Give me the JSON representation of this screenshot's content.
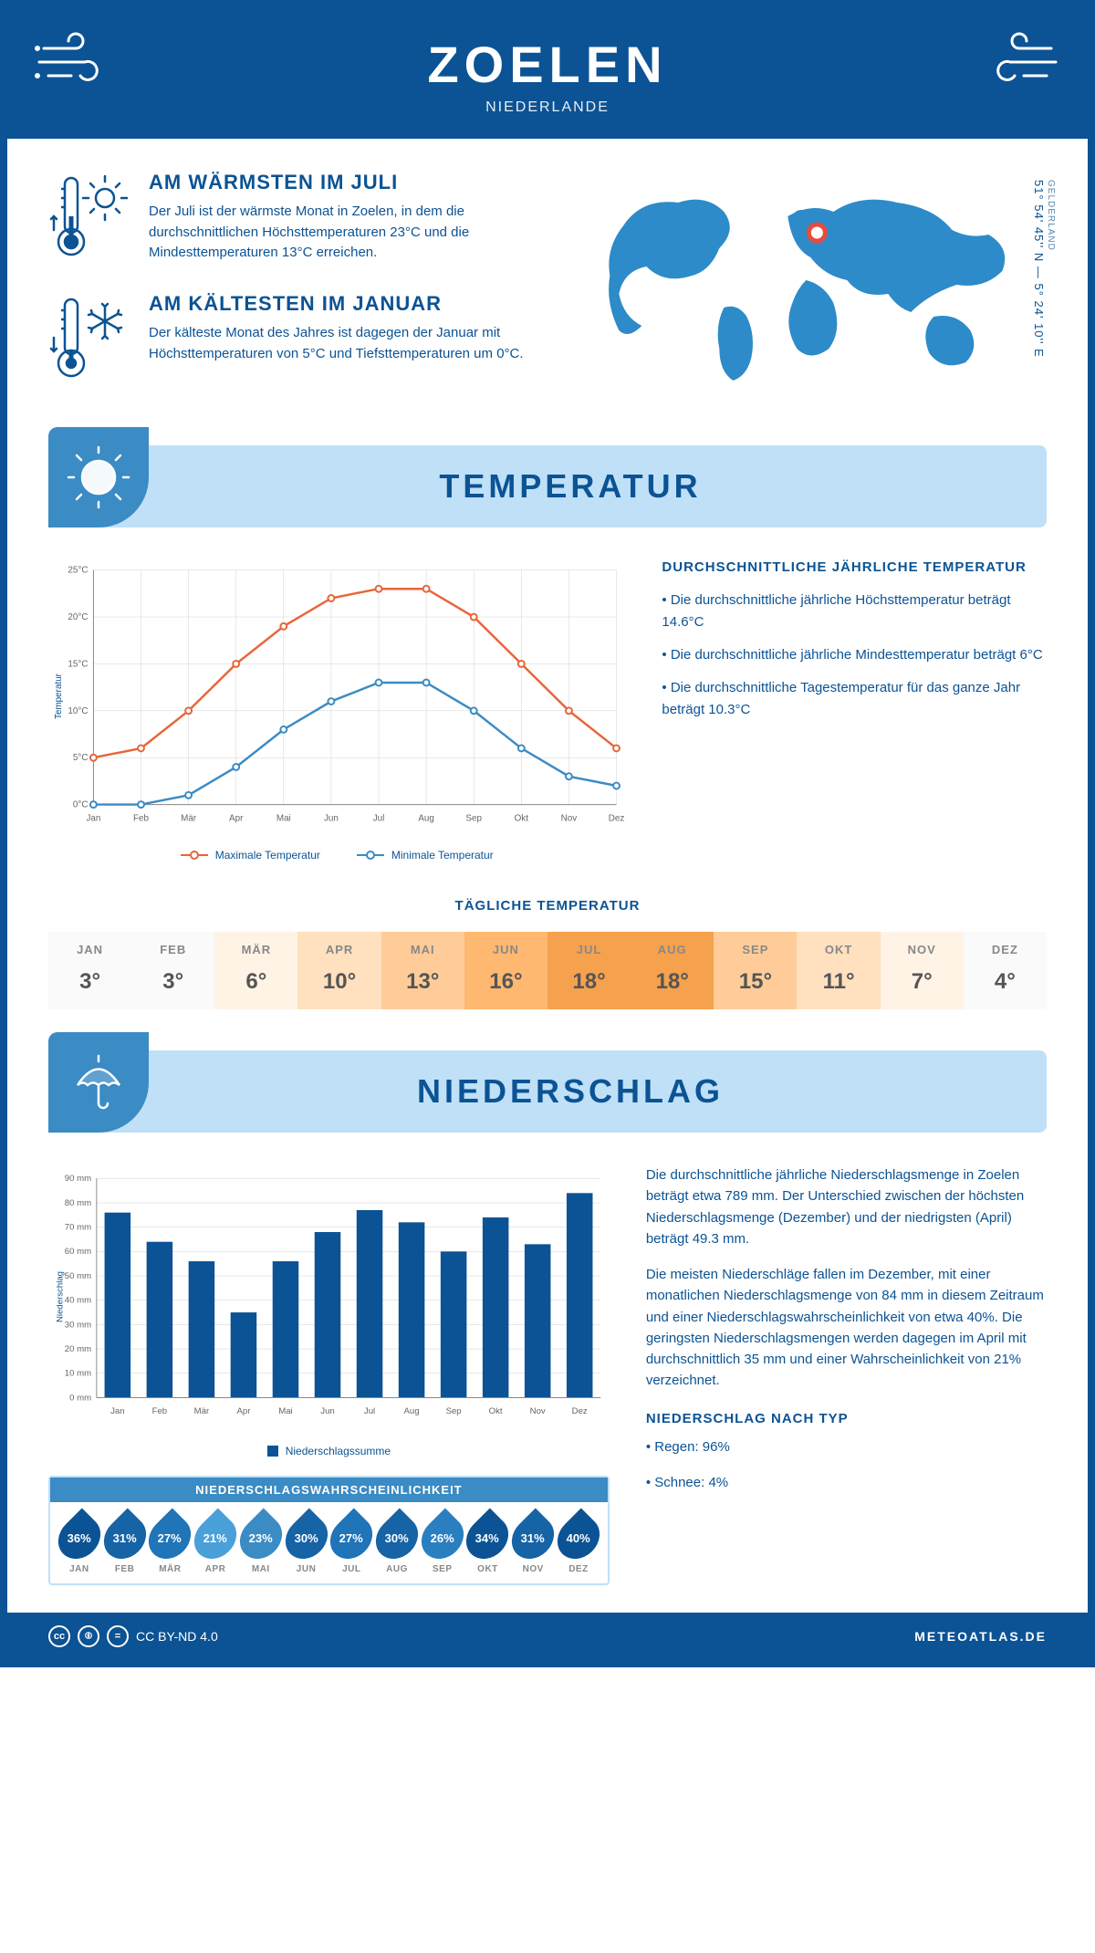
{
  "header": {
    "title": "ZOELEN",
    "subtitle": "NIEDERLANDE"
  },
  "coords": {
    "region": "GELDERLAND",
    "text": "51° 54' 45'' N — 5° 24' 10'' E"
  },
  "facts": {
    "warm": {
      "title": "AM WÄRMSTEN IM JULI",
      "text": "Der Juli ist der wärmste Monat in Zoelen, in dem die durchschnittlichen Höchsttemperaturen 23°C und die Mindesttemperaturen 13°C erreichen."
    },
    "cold": {
      "title": "AM KÄLTESTEN IM JANUAR",
      "text": "Der kälteste Monat des Jahres ist dagegen der Januar mit Höchsttemperaturen von 5°C und Tiefsttemperaturen um 0°C."
    }
  },
  "sections": {
    "temperature": "TEMPERATUR",
    "precipitation": "NIEDERSCHLAG"
  },
  "temp_chart": {
    "type": "line",
    "months": [
      "Jan",
      "Feb",
      "Mär",
      "Apr",
      "Mai",
      "Jun",
      "Jul",
      "Aug",
      "Sep",
      "Okt",
      "Nov",
      "Dez"
    ],
    "max_series": [
      5,
      6,
      10,
      15,
      19,
      22,
      23,
      23,
      20,
      15,
      10,
      6
    ],
    "min_series": [
      0,
      0,
      1,
      4,
      8,
      11,
      13,
      13,
      10,
      6,
      3,
      2
    ],
    "max_color": "#e8653a",
    "min_color": "#3b8bc4",
    "ylim": [
      0,
      25
    ],
    "ytick_step": 5,
    "grid_color": "#d0d0d0",
    "ylabel": "Temperatur",
    "legend_max": "Maximale Temperatur",
    "legend_min": "Minimale Temperatur"
  },
  "temp_info": {
    "title": "DURCHSCHNITTLICHE JÄHRLICHE TEMPERATUR",
    "bullets": [
      "• Die durchschnittliche jährliche Höchsttemperatur beträgt 14.6°C",
      "• Die durchschnittliche jährliche Mindesttemperatur beträgt 6°C",
      "• Die durchschnittliche Tagestemperatur für das ganze Jahr beträgt 10.3°C"
    ]
  },
  "daily_temp": {
    "title": "TÄGLICHE TEMPERATUR",
    "months": [
      "JAN",
      "FEB",
      "MÄR",
      "APR",
      "MAI",
      "JUN",
      "JUL",
      "AUG",
      "SEP",
      "OKT",
      "NOV",
      "DEZ"
    ],
    "values": [
      "3°",
      "3°",
      "6°",
      "10°",
      "13°",
      "16°",
      "18°",
      "18°",
      "15°",
      "11°",
      "7°",
      "4°"
    ],
    "colors": [
      "#fafafa",
      "#fafafa",
      "#fff3e6",
      "#ffe0bf",
      "#ffcc99",
      "#ffb870",
      "#f5a14d",
      "#f5a14d",
      "#ffcc99",
      "#ffe0bf",
      "#fff3e6",
      "#fafafa"
    ]
  },
  "precip_chart": {
    "type": "bar",
    "months": [
      "Jan",
      "Feb",
      "Mär",
      "Apr",
      "Mai",
      "Jun",
      "Jul",
      "Aug",
      "Sep",
      "Okt",
      "Nov",
      "Dez"
    ],
    "values": [
      76,
      64,
      56,
      35,
      56,
      68,
      77,
      72,
      60,
      74,
      63,
      84
    ],
    "bar_color": "#0b5394",
    "ylim": [
      0,
      90
    ],
    "ytick_step": 10,
    "grid_color": "#d0d0d0",
    "ylabel": "Niederschlag",
    "legend": "Niederschlagssumme"
  },
  "precip_text": {
    "p1": "Die durchschnittliche jährliche Niederschlagsmenge in Zoelen beträgt etwa 789 mm. Der Unterschied zwischen der höchsten Niederschlagsmenge (Dezember) und der niedrigsten (April) beträgt 49.3 mm.",
    "p2": "Die meisten Niederschläge fallen im Dezember, mit einer monatlichen Niederschlagsmenge von 84 mm in diesem Zeitraum und einer Niederschlagswahrscheinlichkeit von etwa 40%. Die geringsten Niederschlagsmengen werden dagegen im April mit durchschnittlich 35 mm und einer Wahrscheinlichkeit von 21% verzeichnet.",
    "type_title": "NIEDERSCHLAG NACH TYP",
    "type1": "• Regen: 96%",
    "type2": "• Schnee: 4%"
  },
  "prob": {
    "title": "NIEDERSCHLAGSWAHRSCHEINLICHKEIT",
    "months": [
      "JAN",
      "FEB",
      "MÄR",
      "APR",
      "MAI",
      "JUN",
      "JUL",
      "AUG",
      "SEP",
      "OKT",
      "NOV",
      "DEZ"
    ],
    "values": [
      "36%",
      "31%",
      "27%",
      "21%",
      "23%",
      "30%",
      "27%",
      "30%",
      "26%",
      "34%",
      "31%",
      "40%"
    ],
    "colors": [
      "#0b5394",
      "#1663a6",
      "#2074b8",
      "#4aa0d8",
      "#3b8bc4",
      "#1663a6",
      "#2074b8",
      "#1663a6",
      "#2a7fc0",
      "#0b5394",
      "#1663a6",
      "#0b5394"
    ]
  },
  "footer": {
    "license": "CC BY-ND 4.0",
    "brand": "METEOATLAS.DE"
  },
  "colors": {
    "primary": "#0b5394",
    "banner": "#bfe0f7",
    "banner_icon": "#3b8bc4"
  }
}
